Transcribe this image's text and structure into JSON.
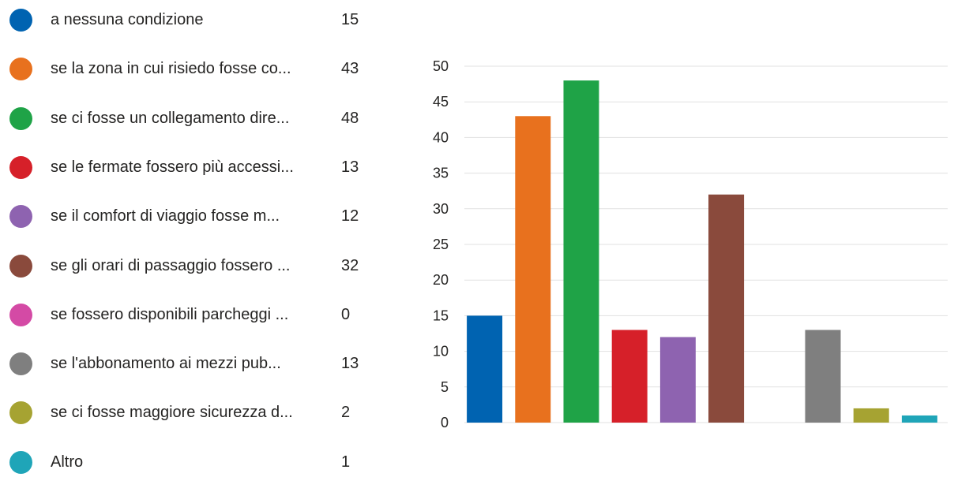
{
  "chart_data": {
    "type": "bar",
    "categories": [
      "a nessuna condizione",
      "se la zona in cui risiedo fosse co...",
      "se ci fosse un collegamento dire...",
      "se le fermate fossero più accessi...",
      "se il comfort di viaggio fosse m...",
      "se gli orari di passaggio fossero ...",
      "se fossero disponibili parcheggi ...",
      "se l'abbonamento ai mezzi pub...",
      "se ci fosse maggiore sicurezza d...",
      "Altro"
    ],
    "values": [
      15,
      43,
      48,
      13,
      12,
      32,
      0,
      13,
      2,
      1
    ],
    "counts_text": [
      "15",
      "43",
      "48",
      "13",
      "12",
      "32",
      "0",
      "13",
      "2",
      "1"
    ],
    "colors": [
      "#0063B1",
      "#E8711E",
      "#1FA347",
      "#D62029",
      "#8E63B0",
      "#8A4A3C",
      "#D44AA5",
      "#7F7F7F",
      "#A6A332",
      "#1FA5B8"
    ],
    "ylim": [
      0,
      50
    ],
    "yticks": [
      "0",
      "5",
      "10",
      "15",
      "20",
      "25",
      "30",
      "35",
      "40",
      "45",
      "50"
    ],
    "grid": true,
    "legend_position": "left"
  }
}
